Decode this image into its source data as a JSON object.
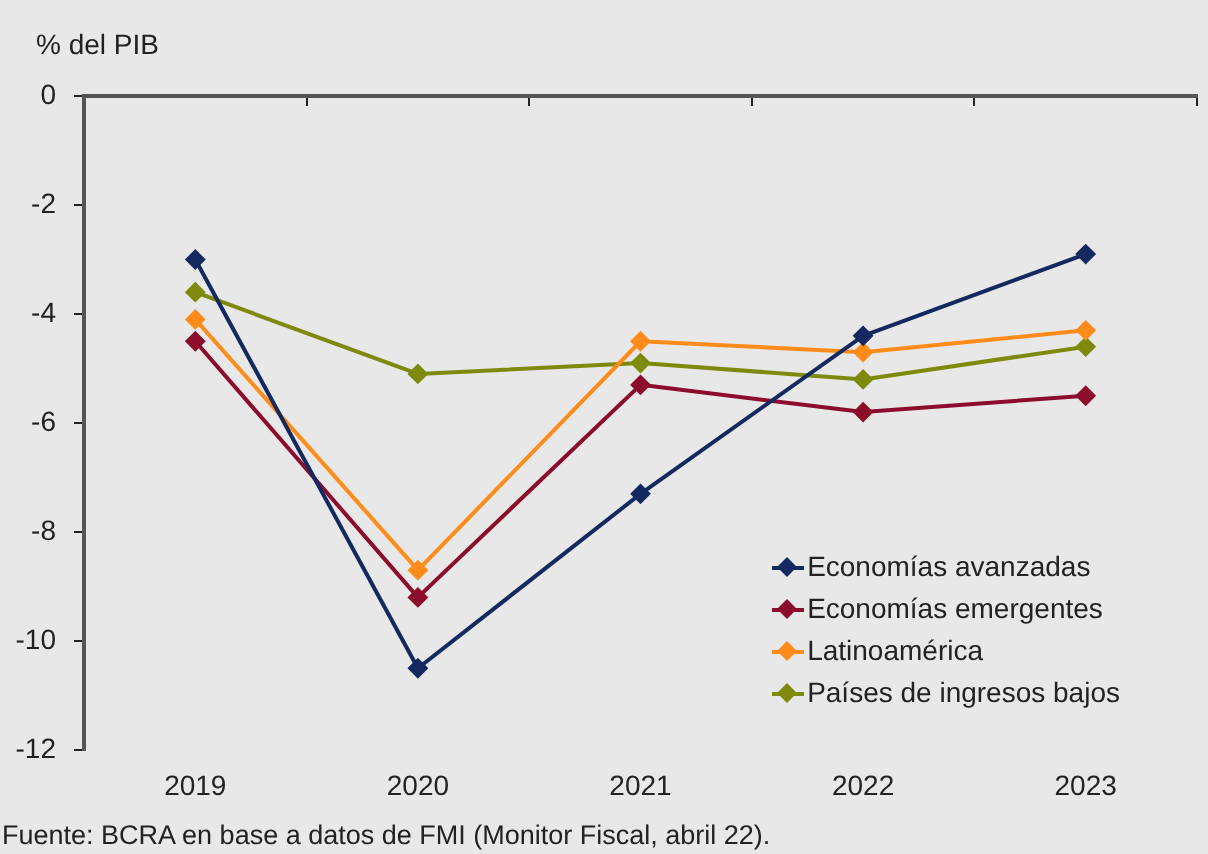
{
  "chart_data": {
    "type": "line",
    "ylabel": "% del PIB",
    "categories": [
      "2019",
      "2020",
      "2021",
      "2022",
      "2023"
    ],
    "series": [
      {
        "name": "Economías avanzadas",
        "color": "#13295f",
        "values": [
          -3.0,
          -10.5,
          -7.3,
          -4.4,
          -2.9
        ]
      },
      {
        "name": "Economías emergentes",
        "color": "#8b0c2c",
        "values": [
          -4.5,
          -9.2,
          -5.3,
          -5.8,
          -5.5
        ]
      },
      {
        "name": "Latinoamérica",
        "color": "#ff8c1a",
        "values": [
          -4.1,
          -8.7,
          -4.5,
          -4.7,
          -4.3
        ]
      },
      {
        "name": "Países de ingresos bajos",
        "color": "#7d8a0c",
        "values": [
          -3.6,
          -5.1,
          -4.9,
          -5.2,
          -4.6
        ]
      }
    ],
    "ylim": [
      -12,
      0
    ],
    "yticks": [
      -12,
      -10,
      -8,
      -6,
      -4,
      -2,
      0
    ],
    "grid": false,
    "legend": "bottom right",
    "marker": "diamond",
    "annotations": [
      "Fuente: BCRA en base a datos de FMI (Monitor Fiscal, abril 22)."
    ]
  }
}
